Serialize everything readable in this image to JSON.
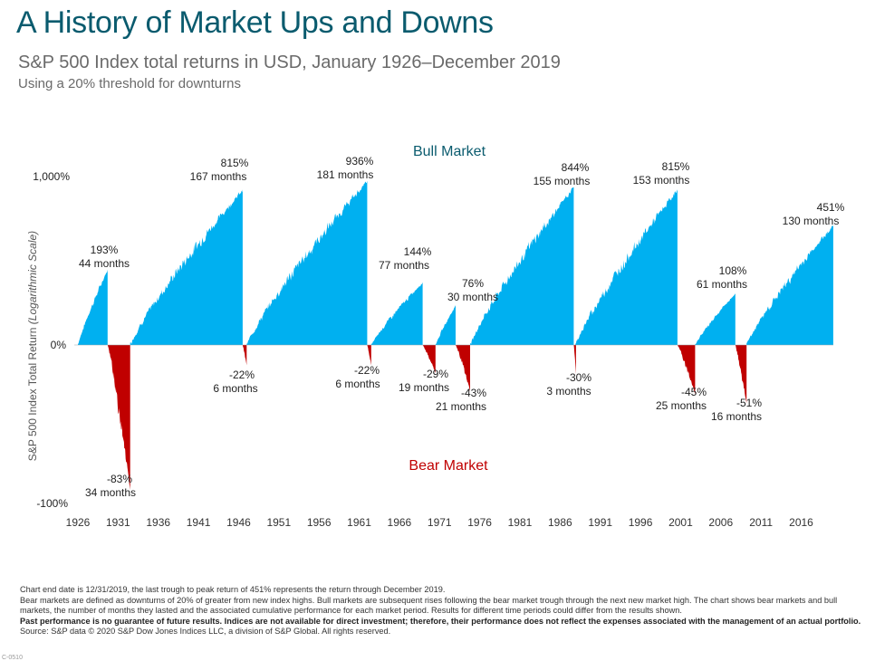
{
  "title": "A History of Market Ups and Downs",
  "subtitle": "S&P 500 Index total returns in USD, January 1926–December 2019",
  "subnote": "Using a 20% threshold for downturns",
  "colors": {
    "title": "#0a5b6e",
    "bull": "#00b0f0",
    "bear": "#c00000",
    "bull_label": "#0a5b6e",
    "bear_label": "#c00000"
  },
  "chart_data": {
    "type": "area",
    "title": "A History of Market Ups and Downs",
    "ylabel": "S&P 500 Index Total Return",
    "ylabel_note": "(Logarithmic Scale)",
    "y_ticks": [
      "1,000%",
      "0%",
      "-100%"
    ],
    "x_ticks": [
      "1926",
      "1931",
      "1936",
      "1941",
      "1946",
      "1951",
      "1956",
      "1961",
      "1966",
      "1971",
      "1976",
      "1981",
      "1986",
      "1991",
      "1996",
      "2001",
      "2006",
      "2011",
      "2016"
    ],
    "xlim": [
      1926,
      2020
    ],
    "bull_label": "Bull Market",
    "bear_label": "Bear Market",
    "bull_markets": [
      {
        "start": 1926.0,
        "end": 1929.7,
        "return": "193%",
        "duration": "44 months",
        "value": 193
      },
      {
        "start": 1932.5,
        "end": 1946.5,
        "return": "815%",
        "duration": "167 months",
        "value": 815
      },
      {
        "start": 1947.0,
        "end": 1962.0,
        "return": "936%",
        "duration": "181 months",
        "value": 936
      },
      {
        "start": 1962.5,
        "end": 1968.9,
        "return": "144%",
        "duration": "77 months",
        "value": 144
      },
      {
        "start": 1970.5,
        "end": 1973.0,
        "return": "76%",
        "duration": "30 months",
        "value": 76
      },
      {
        "start": 1974.8,
        "end": 1987.7,
        "return": "844%",
        "duration": "155 months",
        "value": 844
      },
      {
        "start": 1987.9,
        "end": 2000.6,
        "return": "815%",
        "duration": "153 months",
        "value": 815
      },
      {
        "start": 2002.8,
        "end": 2007.8,
        "return": "108%",
        "duration": "61 months",
        "value": 108
      },
      {
        "start": 2009.2,
        "end": 2019.99,
        "return": "451%",
        "duration": "130 months",
        "value": 451
      }
    ],
    "bear_markets": [
      {
        "start": 1929.7,
        "end": 1932.5,
        "return": "-83%",
        "duration": "34 months",
        "value": -83
      },
      {
        "start": 1946.5,
        "end": 1947.0,
        "return": "-22%",
        "duration": "6 months",
        "value": -22
      },
      {
        "start": 1962.0,
        "end": 1962.5,
        "return": "-22%",
        "duration": "6 months",
        "value": -22
      },
      {
        "start": 1968.9,
        "end": 1970.5,
        "return": "-29%",
        "duration": "19 months",
        "value": -29
      },
      {
        "start": 1973.0,
        "end": 1974.8,
        "return": "-43%",
        "duration": "21 months",
        "value": -43
      },
      {
        "start": 1987.7,
        "end": 1987.9,
        "return": "-30%",
        "duration": "3 months",
        "value": -30
      },
      {
        "start": 2000.6,
        "end": 2002.8,
        "return": "-45%",
        "duration": "25 months",
        "value": -45
      },
      {
        "start": 2007.8,
        "end": 2009.2,
        "return": "-51%",
        "duration": "16 months",
        "value": -51
      }
    ]
  },
  "footnotes": {
    "line1": "Chart end date is 12/31/2019, the last trough to peak return of 451% represents the return through December 2019.",
    "line2": "Bear markets are defined as downturns of 20% of greater from new index highs. Bull markets are subsequent rises following the bear market trough through the next new market high. The chart shows bear markets and bull markets, the number of months they lasted and the associated cumulative performance for each market period. Results for different time periods could differ from the results shown.",
    "line3": "Past performance is no guarantee of future results. Indices are not available for direct investment; therefore, their performance does not reflect the expenses associated with the management of an actual portfolio.",
    "line4": "Source: S&P data © 2020 S&P Dow Jones Indices LLC, a division of S&P Global. All rights reserved."
  },
  "corner_code": "C-0510"
}
